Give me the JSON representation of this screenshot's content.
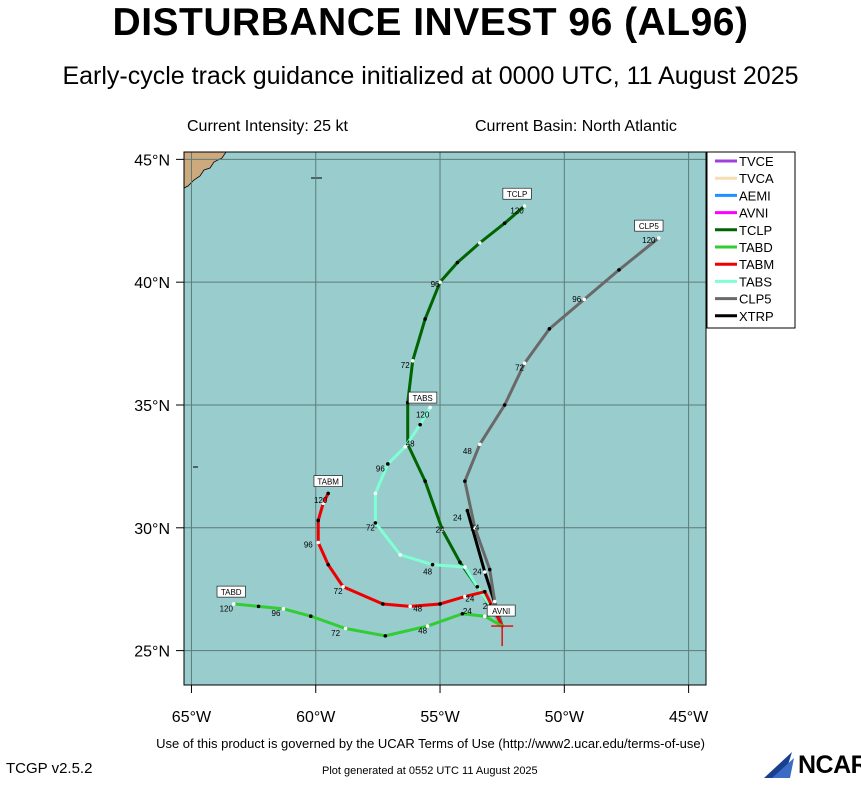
{
  "header": {
    "title": "DISTURBANCE INVEST 96 (AL96)",
    "subtitle": "Early-cycle track guidance initialized at 0000 UTC, 11 August 2025",
    "intensity": "Current Intensity: 25 kt",
    "basin": "Current Basin: North Atlantic"
  },
  "footer": {
    "terms": "Use of this product is governed by the UCAR Terms of Use (http://www2.ucar.edu/terms-of-use)",
    "version": "TCGP v2.5.2",
    "generated": "Plot generated at 0552 UTC   11 August 2025",
    "logo": "NCAR"
  },
  "colors": {
    "ocean": "#99cccc",
    "land": "#cdaa7d",
    "grid": "#607a7a"
  },
  "chart_data": {
    "type": "line",
    "title": "DISTURBANCE INVEST 96 (AL96)",
    "xlim": [
      -65.3,
      -44.3
    ],
    "ylim": [
      23.6,
      45.3
    ],
    "xticks": [
      -65,
      -60,
      -55,
      -50,
      -45
    ],
    "xtick_labels": [
      "65°W",
      "60°W",
      "55°W",
      "50°W",
      "45°W"
    ],
    "yticks": [
      25,
      30,
      35,
      40,
      45
    ],
    "ytick_labels": [
      "25°N",
      "30°N",
      "35°N",
      "40°N",
      "45°N"
    ],
    "grid": true,
    "legend": "top-right",
    "legend_entries": [
      {
        "name": "TVCE",
        "color": "#a040e0"
      },
      {
        "name": "TVCA",
        "color": "#f5deb3"
      },
      {
        "name": "AEMI",
        "color": "#1e90ff"
      },
      {
        "name": "AVNI",
        "color": "#ff00ff"
      },
      {
        "name": "TCLP",
        "color": "#006400"
      },
      {
        "name": "TABD",
        "color": "#32cd32"
      },
      {
        "name": "TABM",
        "color": "#ee0000"
      },
      {
        "name": "TABS",
        "color": "#7fffd4"
      },
      {
        "name": "CLP5",
        "color": "#696969"
      },
      {
        "name": "XTRP",
        "color": "#000000"
      }
    ],
    "storm_position": {
      "lon": -52.5,
      "lat": 26.0
    },
    "series": [
      {
        "name": "XTRP",
        "color": "#000000",
        "points": [
          [
            -52.5,
            26.0
          ],
          [
            -53.2,
            28.2
          ],
          [
            -53.9,
            30.7
          ]
        ],
        "labels": [
          {
            "lon": -54.3,
            "lat": 30.3,
            "text": "24"
          }
        ]
      },
      {
        "name": "CLP5",
        "color": "#696969",
        "tag": "CLP5",
        "points": [
          [
            -52.5,
            26.0
          ],
          [
            -52.8,
            27.0
          ],
          [
            -53.0,
            28.3
          ],
          [
            -53.6,
            30.0
          ],
          [
            -54.0,
            31.9
          ],
          [
            -53.4,
            33.4
          ],
          [
            -52.4,
            35.0
          ],
          [
            -51.6,
            36.7
          ],
          [
            -50.6,
            38.1
          ],
          [
            -49.2,
            39.3
          ],
          [
            -47.8,
            40.5
          ],
          [
            -46.2,
            41.8
          ]
        ],
        "labels": [
          {
            "lon": -53.5,
            "lat": 28.1,
            "text": "24"
          },
          {
            "lon": -53.6,
            "lat": 29.9,
            "text": "24"
          },
          {
            "lon": -53.9,
            "lat": 33.0,
            "text": "48"
          },
          {
            "lon": -51.8,
            "lat": 36.4,
            "text": "72"
          },
          {
            "lon": -49.5,
            "lat": 39.2,
            "text": "96"
          },
          {
            "lon": -46.6,
            "lat": 41.6,
            "text": "120"
          }
        ],
        "tag_pos": {
          "lon": -46.6,
          "lat": 42.2
        }
      },
      {
        "name": "TCLP",
        "color": "#006400",
        "tag": "TCLP",
        "points": [
          [
            -52.5,
            26.0
          ],
          [
            -53.3,
            27.3
          ],
          [
            -54.2,
            28.6
          ],
          [
            -54.9,
            29.9
          ],
          [
            -55.6,
            31.9
          ],
          [
            -56.3,
            33.4
          ],
          [
            -56.3,
            35.1
          ],
          [
            -56.1,
            36.8
          ],
          [
            -55.6,
            38.5
          ],
          [
            -55.0,
            40.0
          ],
          [
            -54.3,
            40.8
          ],
          [
            -53.4,
            41.6
          ],
          [
            -52.4,
            42.4
          ],
          [
            -51.6,
            43.1
          ]
        ],
        "labels": [
          {
            "lon": -55.0,
            "lat": 29.8,
            "text": "24"
          },
          {
            "lon": -56.4,
            "lat": 36.5,
            "text": "72"
          },
          {
            "lon": -55.2,
            "lat": 39.8,
            "text": "96"
          },
          {
            "lon": -51.9,
            "lat": 42.8,
            "text": "120"
          }
        ],
        "tag_pos": {
          "lon": -51.9,
          "lat": 43.5
        }
      },
      {
        "name": "TABS",
        "color": "#7fffd4",
        "tag": "TABS",
        "points": [
          [
            -52.5,
            26.0
          ],
          [
            -52.9,
            26.7
          ],
          [
            -53.5,
            27.6
          ],
          [
            -54.0,
            28.4
          ],
          [
            -55.3,
            28.5
          ],
          [
            -56.6,
            28.9
          ],
          [
            -57.6,
            30.2
          ],
          [
            -57.6,
            31.4
          ],
          [
            -57.1,
            32.6
          ],
          [
            -56.4,
            33.3
          ],
          [
            -55.8,
            34.2
          ],
          [
            -55.4,
            34.9
          ]
        ],
        "labels": [
          {
            "lon": -53.9,
            "lat": 26.5,
            "text": "24"
          },
          {
            "lon": -55.5,
            "lat": 28.1,
            "text": "48"
          },
          {
            "lon": -57.8,
            "lat": 29.9,
            "text": "72"
          },
          {
            "lon": -57.4,
            "lat": 32.3,
            "text": "96"
          },
          {
            "lon": -56.2,
            "lat": 33.3,
            "text": "48"
          },
          {
            "lon": -55.7,
            "lat": 34.5,
            "text": "120"
          }
        ],
        "tag_pos": {
          "lon": -55.7,
          "lat": 35.2
        }
      },
      {
        "name": "TABM",
        "color": "#ee0000",
        "tag": "TABM",
        "points": [
          [
            -52.5,
            26.0
          ],
          [
            -52.9,
            26.8
          ],
          [
            -53.2,
            27.4
          ],
          [
            -54.0,
            27.2
          ],
          [
            -55.0,
            26.9
          ],
          [
            -56.2,
            26.8
          ],
          [
            -57.3,
            26.9
          ],
          [
            -58.9,
            27.6
          ],
          [
            -59.5,
            28.5
          ],
          [
            -59.9,
            29.4
          ],
          [
            -59.9,
            30.3
          ],
          [
            -59.7,
            31.0
          ],
          [
            -59.5,
            31.4
          ]
        ],
        "labels": [
          {
            "lon": -53.8,
            "lat": 27.0,
            "text": "24"
          },
          {
            "lon": -55.9,
            "lat": 26.6,
            "text": "48"
          },
          {
            "lon": -59.1,
            "lat": 27.3,
            "text": "72"
          },
          {
            "lon": -60.3,
            "lat": 29.2,
            "text": "96"
          },
          {
            "lon": -59.8,
            "lat": 31.0,
            "text": "120"
          }
        ],
        "tag_pos": {
          "lon": -59.5,
          "lat": 31.8
        }
      },
      {
        "name": "TABD",
        "color": "#32cd32",
        "tag": "TABD",
        "points": [
          [
            -52.5,
            26.0
          ],
          [
            -53.2,
            26.4
          ],
          [
            -54.1,
            26.5
          ],
          [
            -55.5,
            26.0
          ],
          [
            -57.2,
            25.6
          ],
          [
            -58.8,
            25.9
          ],
          [
            -60.2,
            26.4
          ],
          [
            -61.3,
            26.7
          ],
          [
            -62.3,
            26.8
          ],
          [
            -63.3,
            26.9
          ]
        ],
        "labels": [
          {
            "lon": -53.1,
            "lat": 26.7,
            "text": "24"
          },
          {
            "lon": -55.7,
            "lat": 25.7,
            "text": "48"
          },
          {
            "lon": -59.2,
            "lat": 25.6,
            "text": "72"
          },
          {
            "lon": -61.6,
            "lat": 26.4,
            "text": "96"
          },
          {
            "lon": -63.6,
            "lat": 26.6,
            "text": "120"
          }
        ],
        "tag_pos": {
          "lon": -63.4,
          "lat": 27.3
        }
      }
    ],
    "avni_tag": {
      "text": "AVNI",
      "lon": -52.5,
      "lat": 26.0
    }
  }
}
